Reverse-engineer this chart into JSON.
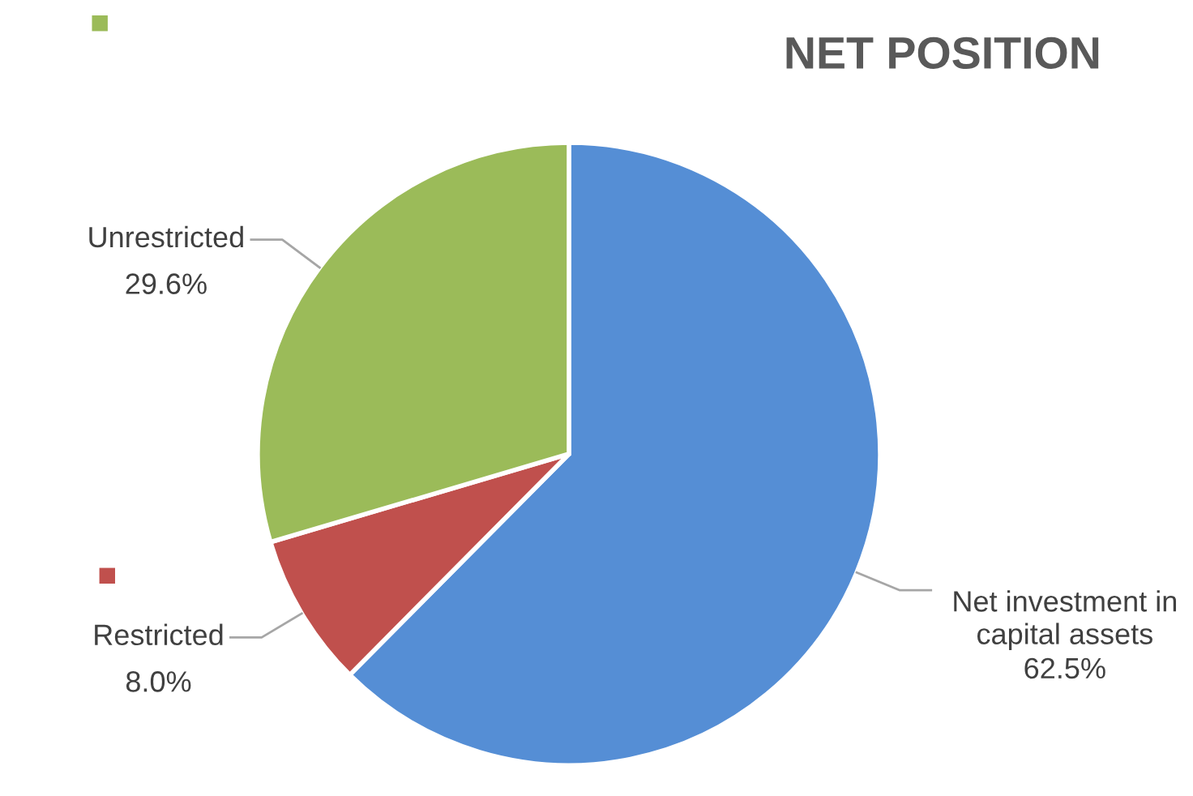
{
  "chart_data": {
    "type": "pie",
    "title": "NET POSITION",
    "categories": [
      "Net investment in capital assets",
      "Restricted",
      "Unrestricted"
    ],
    "values": [
      62.5,
      8.0,
      29.6
    ],
    "value_labels": [
      "62.5%",
      "8.0%",
      "29.6%"
    ],
    "colors": [
      "#558ed5",
      "#c0504d",
      "#9bbb59"
    ]
  }
}
